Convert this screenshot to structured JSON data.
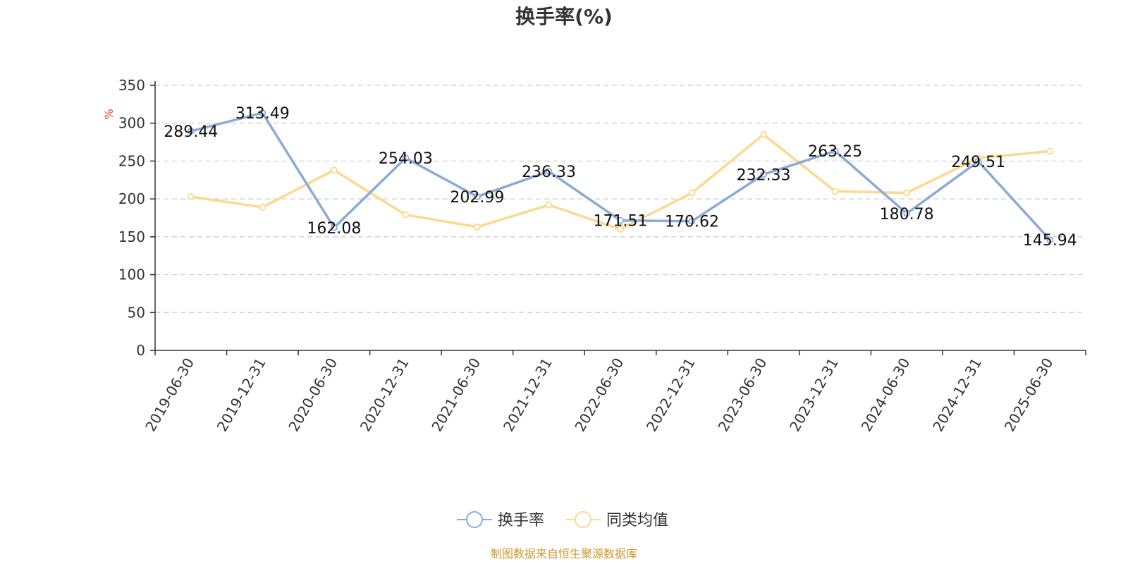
{
  "title": "换手率(%)",
  "source": "制图数据来自恒生聚源数据库",
  "colors": {
    "series1": "#8aabd6",
    "series2": "#fcd98e",
    "unit": "#e53935",
    "source": "#c99a2e",
    "grid": "#cccccc",
    "axis": "#333333"
  },
  "chart_data": {
    "type": "line",
    "title": "换手率(%)",
    "ylabel": "%",
    "xlabel": "",
    "ylim": [
      0,
      350
    ],
    "yticks": [
      0,
      50,
      100,
      150,
      200,
      250,
      300,
      350
    ],
    "grid": true,
    "legend_position": "bottom-center",
    "categories": [
      "2019-06-30",
      "2019-12-31",
      "2020-06-30",
      "2020-12-31",
      "2021-06-30",
      "2021-12-31",
      "2022-06-30",
      "2022-12-31",
      "2023-06-30",
      "2023-12-31",
      "2024-06-30",
      "2024-12-31",
      "2025-06-30"
    ],
    "series": [
      {
        "name": "换手率",
        "values": [
          289.44,
          313.49,
          162.08,
          254.03,
          202.99,
          236.33,
          171.51,
          170.62,
          232.33,
          263.25,
          180.78,
          249.51,
          145.94
        ],
        "labels": [
          "289.44",
          "313.49",
          "162.08",
          "254.03",
          "202.99",
          "236.33",
          "171.51",
          "170.62",
          "232.33",
          "263.25",
          "180.78",
          "249.51",
          "145.94"
        ]
      },
      {
        "name": "同类均值",
        "values": [
          203,
          189,
          238,
          179,
          163,
          192,
          160,
          208,
          285,
          210,
          208,
          254,
          263
        ]
      }
    ]
  }
}
